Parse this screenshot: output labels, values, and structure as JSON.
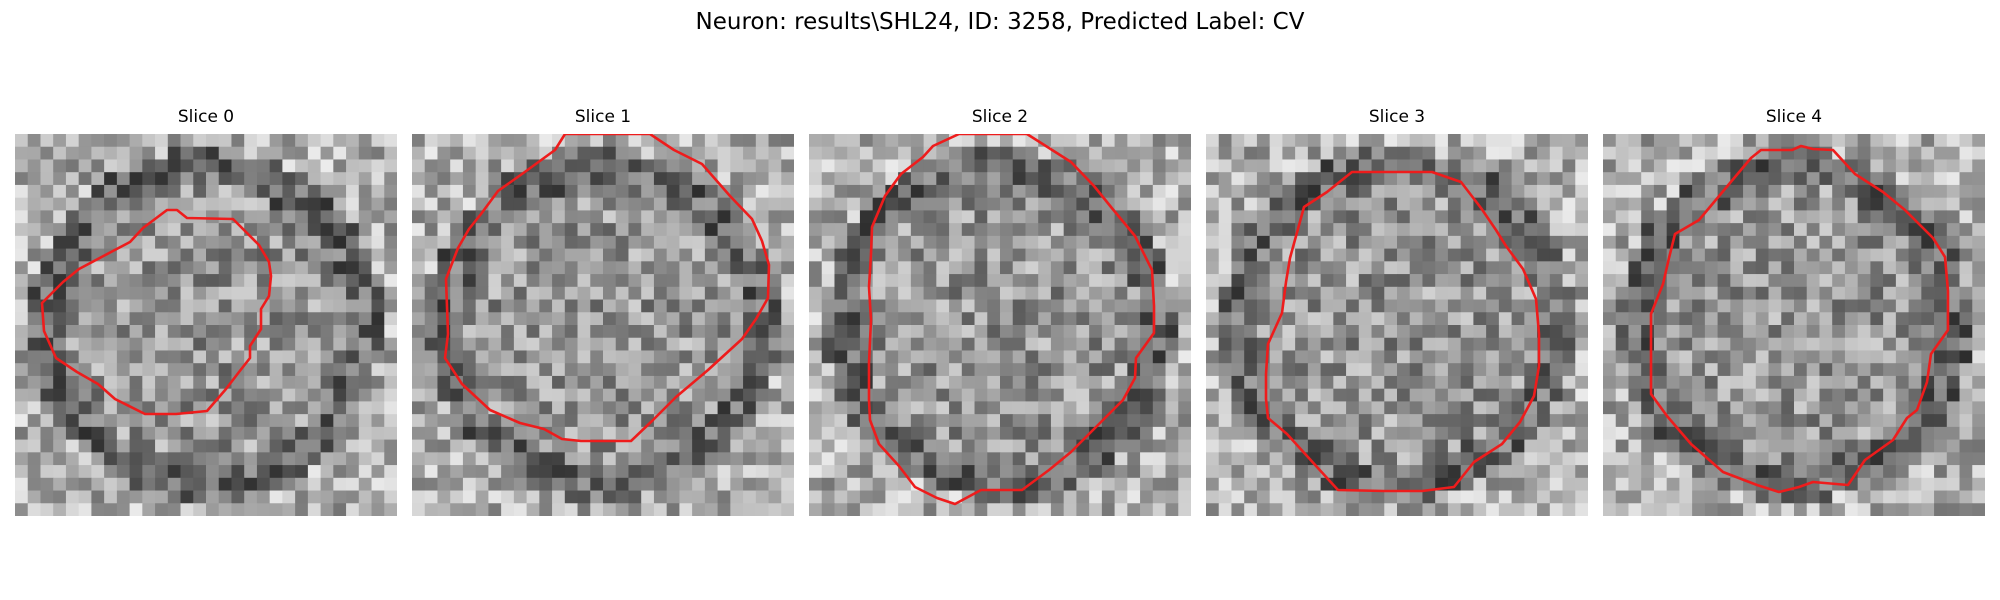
{
  "figure": {
    "title": "Neuron: results\\SHL24, ID: 3258, Predicted Label: CV"
  },
  "style": {
    "contour_color": "#ee1c1c"
  },
  "slices": [
    {
      "label": "Slice 0"
    },
    {
      "label": "Slice 1"
    },
    {
      "label": "Slice 2"
    },
    {
      "label": "Slice 3"
    },
    {
      "label": "Slice 4"
    }
  ]
}
